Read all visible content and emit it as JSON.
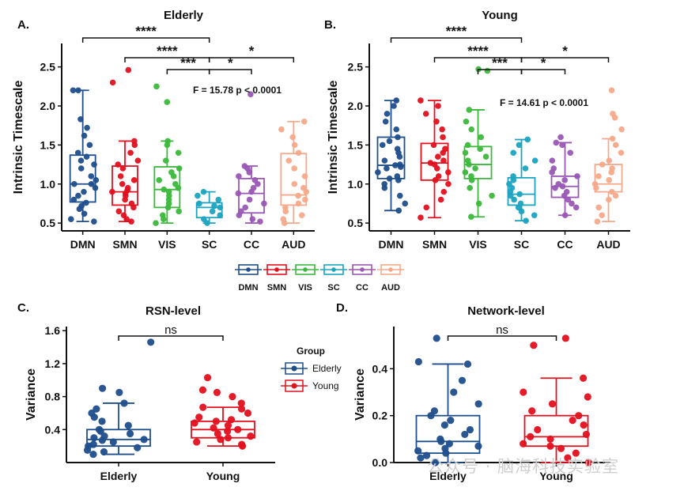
{
  "watermark": "公众号 · 脑海科技实验室",
  "colors": {
    "DMN": "#1f4e8c",
    "SMN": "#e3101e",
    "VIS": "#3cb83c",
    "SC": "#1ba3c0",
    "CC": "#9a57b5",
    "AUD": "#f5a98a",
    "Elderly": "#1f4e8c",
    "Young": "#e3101e"
  },
  "chart_data": [
    {
      "id": "A",
      "type": "box",
      "panel_label": "A.",
      "title": "Elderly",
      "ylabel": "Intrinsic Timescale",
      "ylim": [
        0.4,
        2.8
      ],
      "yticks": [
        0.5,
        1.0,
        1.5,
        2.0,
        2.5
      ],
      "categories": [
        "DMN",
        "SMN",
        "VIS",
        "SC",
        "CC",
        "AUD"
      ],
      "stat_text": "F = 15.78 p < 0.0001",
      "boxes": [
        {
          "name": "DMN",
          "whislo": 0.52,
          "q1": 0.77,
          "med": 1.0,
          "q3": 1.37,
          "whishi": 2.2,
          "points": [
            0.52,
            0.55,
            0.62,
            0.68,
            0.72,
            0.76,
            0.8,
            0.85,
            0.9,
            0.95,
            1.0,
            1.0,
            1.05,
            1.1,
            1.2,
            1.25,
            1.3,
            1.35,
            1.4,
            1.5,
            1.62,
            1.72,
            1.83,
            2.2,
            2.2
          ]
        },
        {
          "name": "SMN",
          "whislo": 0.52,
          "q1": 0.73,
          "med": 0.9,
          "q3": 1.23,
          "whishi": 1.55,
          "points": [
            0.52,
            0.55,
            0.6,
            0.65,
            0.7,
            0.75,
            0.8,
            0.85,
            0.88,
            0.9,
            0.92,
            0.95,
            1.0,
            1.05,
            1.1,
            1.2,
            1.25,
            1.3,
            1.4,
            1.5,
            1.55,
            2.3,
            2.46
          ]
        },
        {
          "name": "VIS",
          "whislo": 0.5,
          "q1": 0.7,
          "med": 0.93,
          "q3": 1.22,
          "whishi": 1.55,
          "points": [
            0.5,
            0.55,
            0.6,
            0.65,
            0.7,
            0.75,
            0.8,
            0.85,
            0.9,
            0.93,
            0.95,
            1.0,
            1.05,
            1.1,
            1.15,
            1.2,
            1.3,
            1.4,
            1.5,
            1.55,
            2.05,
            2.25
          ]
        },
        {
          "name": "SC",
          "whislo": 0.5,
          "q1": 0.57,
          "med": 0.7,
          "q3": 0.76,
          "whishi": 0.9,
          "points": [
            0.5,
            0.55,
            0.6,
            0.65,
            0.7,
            0.72,
            0.75,
            0.8,
            0.85,
            0.9
          ]
        },
        {
          "name": "CC",
          "whislo": 0.5,
          "q1": 0.63,
          "med": 0.88,
          "q3": 1.07,
          "whishi": 1.23,
          "points": [
            0.52,
            0.55,
            0.6,
            0.65,
            0.7,
            0.75,
            0.8,
            0.88,
            0.9,
            0.95,
            1.0,
            1.05,
            1.1,
            1.15,
            1.2,
            1.23,
            2.15
          ]
        },
        {
          "name": "AUD",
          "whislo": 0.5,
          "q1": 0.73,
          "med": 0.86,
          "q3": 1.39,
          "whishi": 1.8,
          "points": [
            0.5,
            0.55,
            0.6,
            0.65,
            0.7,
            0.75,
            0.8,
            0.85,
            0.9,
            0.95,
            1.0,
            1.1,
            1.2,
            1.3,
            1.4,
            1.5,
            1.6,
            1.7,
            1.8
          ]
        }
      ],
      "brackets": [
        {
          "from": "DMN",
          "to": "SC",
          "label": "****",
          "level": 3
        },
        {
          "from": "SMN",
          "to": "SC",
          "label": "****",
          "level": 2
        },
        {
          "from": "VIS",
          "to": "SC",
          "label": "***",
          "level": 1
        },
        {
          "from": "SC",
          "to": "CC",
          "label": "*",
          "level": 1
        },
        {
          "from": "SC",
          "to": "AUD",
          "label": "*",
          "level": 2
        }
      ]
    },
    {
      "id": "B",
      "type": "box",
      "panel_label": "B.",
      "title": "Young",
      "ylabel": "Intrinsic Timescale",
      "ylim": [
        0.4,
        2.8
      ],
      "yticks": [
        0.5,
        1.0,
        1.5,
        2.0,
        2.5
      ],
      "categories": [
        "DMN",
        "SMN",
        "VIS",
        "SC",
        "CC",
        "AUD"
      ],
      "stat_text": "F = 14.61 p < 0.0001",
      "boxes": [
        {
          "name": "DMN",
          "whislo": 0.66,
          "q1": 1.07,
          "med": 1.24,
          "q3": 1.6,
          "whishi": 2.07,
          "points": [
            0.66,
            0.75,
            0.85,
            0.95,
            1.0,
            1.05,
            1.07,
            1.1,
            1.15,
            1.2,
            1.22,
            1.24,
            1.25,
            1.3,
            1.35,
            1.4,
            1.45,
            1.5,
            1.55,
            1.6,
            1.7,
            1.8,
            1.9,
            2.0,
            2.07
          ]
        },
        {
          "name": "SMN",
          "whislo": 0.57,
          "q1": 1.05,
          "med": 1.27,
          "q3": 1.52,
          "whishi": 2.07,
          "points": [
            0.57,
            0.7,
            0.8,
            0.9,
            1.0,
            1.05,
            1.1,
            1.15,
            1.2,
            1.25,
            1.27,
            1.3,
            1.35,
            1.4,
            1.45,
            1.5,
            1.6,
            1.7,
            1.8,
            1.9,
            2.0,
            2.07
          ]
        },
        {
          "name": "VIS",
          "whislo": 0.58,
          "q1": 1.07,
          "med": 1.25,
          "q3": 1.48,
          "whishi": 1.95,
          "points": [
            0.58,
            0.75,
            0.85,
            0.95,
            1.05,
            1.1,
            1.15,
            1.2,
            1.25,
            1.3,
            1.35,
            1.4,
            1.45,
            1.5,
            1.6,
            1.7,
            1.8,
            1.95,
            2.45,
            2.47
          ]
        },
        {
          "name": "SC",
          "whislo": 0.53,
          "q1": 0.73,
          "med": 0.87,
          "q3": 1.08,
          "whishi": 1.57,
          "points": [
            0.53,
            0.6,
            0.65,
            0.7,
            0.75,
            0.8,
            0.85,
            0.87,
            0.9,
            0.95,
            1.0,
            1.05,
            1.1,
            1.2,
            1.3,
            1.4,
            1.5,
            1.57
          ]
        },
        {
          "name": "CC",
          "whislo": 0.6,
          "q1": 0.83,
          "med": 0.97,
          "q3": 1.1,
          "whishi": 1.53,
          "points": [
            0.6,
            0.7,
            0.75,
            0.8,
            0.85,
            0.9,
            0.95,
            0.97,
            1.0,
            1.05,
            1.1,
            1.15,
            1.2,
            1.3,
            1.4,
            1.5,
            1.53,
            1.6
          ]
        },
        {
          "name": "AUD",
          "whislo": 0.52,
          "q1": 0.9,
          "med": 1.0,
          "q3": 1.25,
          "whishi": 1.58,
          "points": [
            0.52,
            0.6,
            0.7,
            0.8,
            0.85,
            0.9,
            0.95,
            1.0,
            1.05,
            1.1,
            1.15,
            1.2,
            1.25,
            1.3,
            1.4,
            1.5,
            1.58,
            1.7,
            1.85,
            1.9,
            2.2
          ]
        }
      ],
      "brackets": [
        {
          "from": "DMN",
          "to": "SC",
          "label": "****",
          "level": 3
        },
        {
          "from": "SMN",
          "to": "SC",
          "label": "****",
          "level": 2
        },
        {
          "from": "VIS",
          "to": "SC",
          "label": "***",
          "level": 1
        },
        {
          "from": "SC",
          "to": "CC",
          "label": "*",
          "level": 1
        },
        {
          "from": "SC",
          "to": "AUD",
          "label": "*",
          "level": 2
        }
      ]
    },
    {
      "id": "C",
      "type": "box",
      "panel_label": "C.",
      "title": "RSN-level",
      "ylabel": "Variance",
      "xlabel": "",
      "ylim": [
        0,
        1.65
      ],
      "yticks": [
        0.4,
        0.8,
        1.2,
        1.6
      ],
      "yticklabels": [
        "0.4",
        "0.8",
        "1.2",
        "1.6"
      ],
      "categories": [
        "Elderly",
        "Young"
      ],
      "legend_title": "Group",
      "boxes": [
        {
          "name": "Elderly",
          "whislo": 0.1,
          "q1": 0.2,
          "med": 0.28,
          "q3": 0.4,
          "whishi": 0.72,
          "points": [
            0.1,
            0.13,
            0.15,
            0.18,
            0.2,
            0.22,
            0.25,
            0.27,
            0.28,
            0.3,
            0.32,
            0.35,
            0.38,
            0.4,
            0.45,
            0.5,
            0.55,
            0.6,
            0.65,
            0.72,
            0.85,
            0.9,
            1.46
          ]
        },
        {
          "name": "Young",
          "whislo": 0.2,
          "q1": 0.3,
          "med": 0.4,
          "q3": 0.5,
          "whishi": 0.67,
          "points": [
            0.2,
            0.22,
            0.25,
            0.28,
            0.3,
            0.32,
            0.35,
            0.38,
            0.4,
            0.42,
            0.45,
            0.48,
            0.5,
            0.52,
            0.55,
            0.6,
            0.65,
            0.67,
            0.72,
            0.8,
            0.85,
            0.88,
            1.03
          ]
        }
      ],
      "brackets": [
        {
          "from": "Elderly",
          "to": "Young",
          "label": "ns",
          "level": 1
        }
      ]
    },
    {
      "id": "D",
      "type": "box",
      "panel_label": "D.",
      "title": "Network-level",
      "ylabel": "Variance",
      "ylim": [
        0,
        0.58
      ],
      "yticks": [
        0.0,
        0.2,
        0.4
      ],
      "yticklabels": [
        "0.0",
        "0.2",
        "0.4"
      ],
      "categories": [
        "Elderly",
        "Young"
      ],
      "boxes": [
        {
          "name": "Elderly",
          "whislo": 0.0,
          "q1": 0.04,
          "med": 0.09,
          "q3": 0.2,
          "whishi": 0.42,
          "points": [
            0.0,
            0.02,
            0.03,
            0.04,
            0.05,
            0.06,
            0.07,
            0.08,
            0.09,
            0.1,
            0.12,
            0.14,
            0.16,
            0.18,
            0.2,
            0.22,
            0.25,
            0.3,
            0.35,
            0.42,
            0.43,
            0.53
          ]
        },
        {
          "name": "Young",
          "whislo": 0.0,
          "q1": 0.07,
          "med": 0.11,
          "q3": 0.2,
          "whishi": 0.36,
          "points": [
            0.0,
            0.02,
            0.04,
            0.06,
            0.07,
            0.08,
            0.1,
            0.11,
            0.12,
            0.14,
            0.16,
            0.18,
            0.2,
            0.22,
            0.25,
            0.28,
            0.3,
            0.36,
            0.5,
            0.53
          ]
        }
      ],
      "brackets": [
        {
          "from": "Elderly",
          "to": "Young",
          "label": "ns",
          "level": 1
        }
      ]
    }
  ]
}
